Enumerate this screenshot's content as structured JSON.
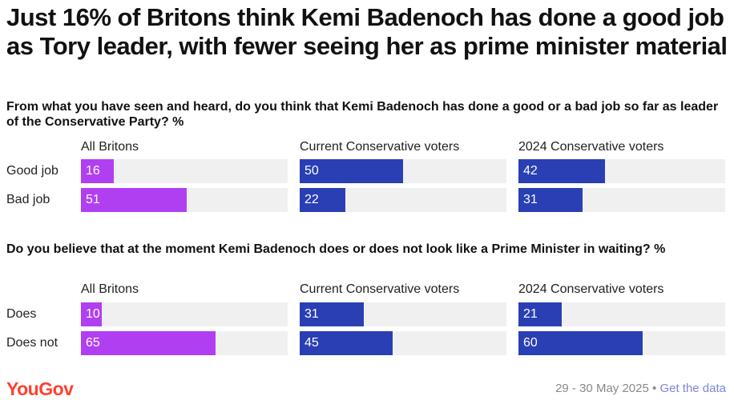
{
  "title": "Just 16% of Britons think Kemi Badenoch has done a good job as Tory leader, with fewer seeing her as prime minister material",
  "colors": {
    "all_britons": "#b13ff2",
    "conservative": "#2a3fb4",
    "track": "#f0f0f0",
    "logo": "#ff412c"
  },
  "chart_data": [
    {
      "type": "bar",
      "title": "From what you have seen and heard, do you think that Kemi Badenoch has done a good or a bad job so far as leader of the Conservative Party? %",
      "categories": [
        "Good job",
        "Bad job"
      ],
      "xlim": [
        0,
        100
      ],
      "series": [
        {
          "name": "All Britons",
          "values": [
            16,
            51
          ]
        },
        {
          "name": "Current Conservative voters",
          "values": [
            50,
            22
          ]
        },
        {
          "name": "2024 Conservative voters",
          "values": [
            42,
            31
          ]
        }
      ]
    },
    {
      "type": "bar",
      "title": "Do you believe that at the moment Kemi Badenoch does or does not look like a Prime Minister in waiting? %",
      "categories": [
        "Does",
        "Does not"
      ],
      "xlim": [
        0,
        100
      ],
      "series": [
        {
          "name": "All Britons",
          "values": [
            10,
            65
          ]
        },
        {
          "name": "Current Conservative voters",
          "values": [
            31,
            45
          ]
        },
        {
          "name": "2024 Conservative voters",
          "values": [
            21,
            60
          ]
        }
      ]
    }
  ],
  "footer": {
    "logo_text": "YouGov",
    "date": "29 - 30 May 2025",
    "separator": "•",
    "link_text": "Get the data"
  }
}
